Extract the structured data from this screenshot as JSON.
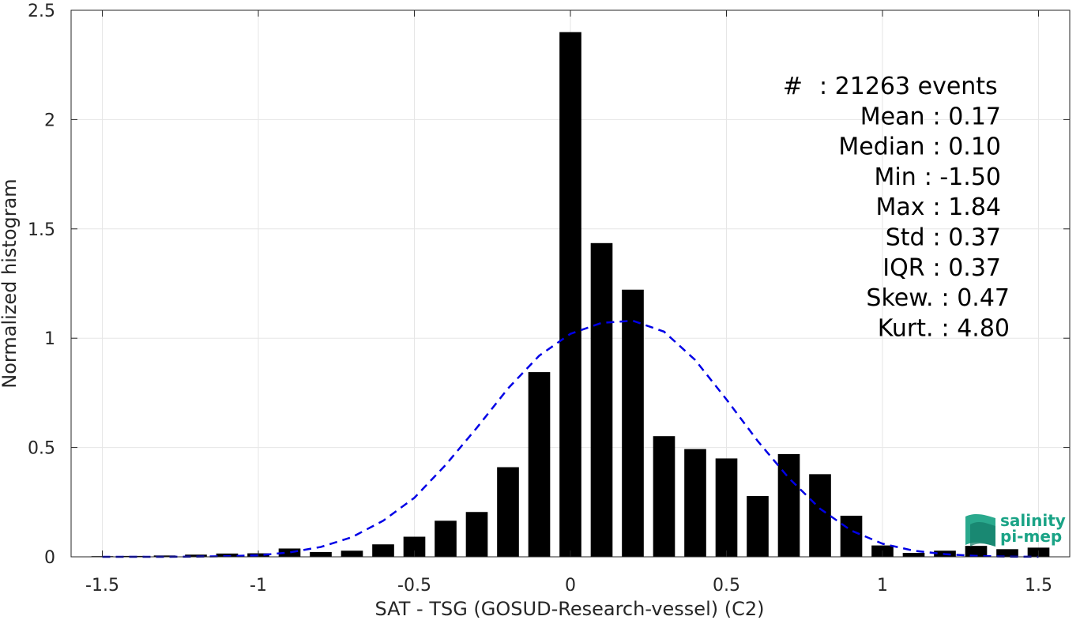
{
  "chart_data": {
    "type": "bar",
    "xlabel": "SAT - TSG (GOSUD-Research-vessel) (C2)",
    "ylabel": "Normalized histogram",
    "xlim": [
      -1.6,
      1.6
    ],
    "ylim": [
      0,
      2.5
    ],
    "grid": true,
    "x_ticks": [
      -1.5,
      -1,
      -0.5,
      0,
      0.5,
      1,
      1.5
    ],
    "x_tick_labels": [
      "-1.5",
      "-1",
      "-0.5",
      "0",
      "0.5",
      "1",
      "1.5"
    ],
    "y_ticks": [
      0,
      0.5,
      1,
      1.5,
      2,
      2.5
    ],
    "y_tick_labels": [
      "0",
      "0.5",
      "1",
      "1.5",
      "2",
      "2.5"
    ],
    "bar_width": 0.07,
    "bars": {
      "x": [
        -1.5,
        -1.4,
        -1.3,
        -1.2,
        -1.1,
        -1.0,
        -0.9,
        -0.8,
        -0.7,
        -0.6,
        -0.5,
        -0.4,
        -0.3,
        -0.2,
        -0.1,
        0.0,
        0.1,
        0.2,
        0.3,
        0.4,
        0.5,
        0.6,
        0.7,
        0.8,
        0.9,
        1.0,
        1.1,
        1.2,
        1.3,
        1.4,
        1.5
      ],
      "values": [
        0.003,
        0.004,
        0.006,
        0.01,
        0.015,
        0.016,
        0.038,
        0.022,
        0.028,
        0.057,
        0.092,
        0.165,
        0.205,
        0.41,
        0.845,
        2.4,
        1.435,
        1.222,
        0.552,
        0.493,
        0.45,
        0.278,
        0.47,
        0.378,
        0.188,
        0.052,
        0.018,
        0.028,
        0.05,
        0.035,
        0.042
      ]
    },
    "fit_curve": {
      "name": "normal fit",
      "style": "dashed",
      "color": "#0000e6",
      "x": [
        -1.5,
        -1.4,
        -1.3,
        -1.2,
        -1.1,
        -1.0,
        -0.9,
        -0.8,
        -0.7,
        -0.6,
        -0.5,
        -0.4,
        -0.3,
        -0.2,
        -0.1,
        0.0,
        0.1,
        0.2,
        0.3,
        0.4,
        0.5,
        0.6,
        0.7,
        0.8,
        0.9,
        1.0,
        1.1,
        1.2,
        1.3,
        1.4,
        1.5
      ],
      "values": [
        0.0,
        0.0,
        0.0,
        0.001,
        0.003,
        0.007,
        0.02,
        0.045,
        0.09,
        0.165,
        0.27,
        0.42,
        0.59,
        0.77,
        0.92,
        1.02,
        1.07,
        1.08,
        1.03,
        0.9,
        0.72,
        0.53,
        0.36,
        0.22,
        0.12,
        0.06,
        0.028,
        0.012,
        0.004,
        0.001,
        0.0
      ]
    },
    "bar_color": "#000000",
    "stats": [
      {
        "label": "#",
        "value": ": 21263 events"
      },
      {
        "label": "Mean",
        "value": ": 0.17"
      },
      {
        "label": "Median",
        "value": ": 0.10"
      },
      {
        "label": "Min",
        "value": ": -1.50"
      },
      {
        "label": "Max",
        "value": ": 1.84"
      },
      {
        "label": "Std",
        "value": ": 0.37"
      },
      {
        "label": "IQR",
        "value": ": 0.37"
      },
      {
        "label": "Skew.",
        "value": ": 0.47"
      },
      {
        "label": "Kurt.",
        "value": ": 4.80"
      }
    ]
  },
  "logo": {
    "line1": "salinity",
    "line2": "pi-mep",
    "color": "#1aa386"
  }
}
